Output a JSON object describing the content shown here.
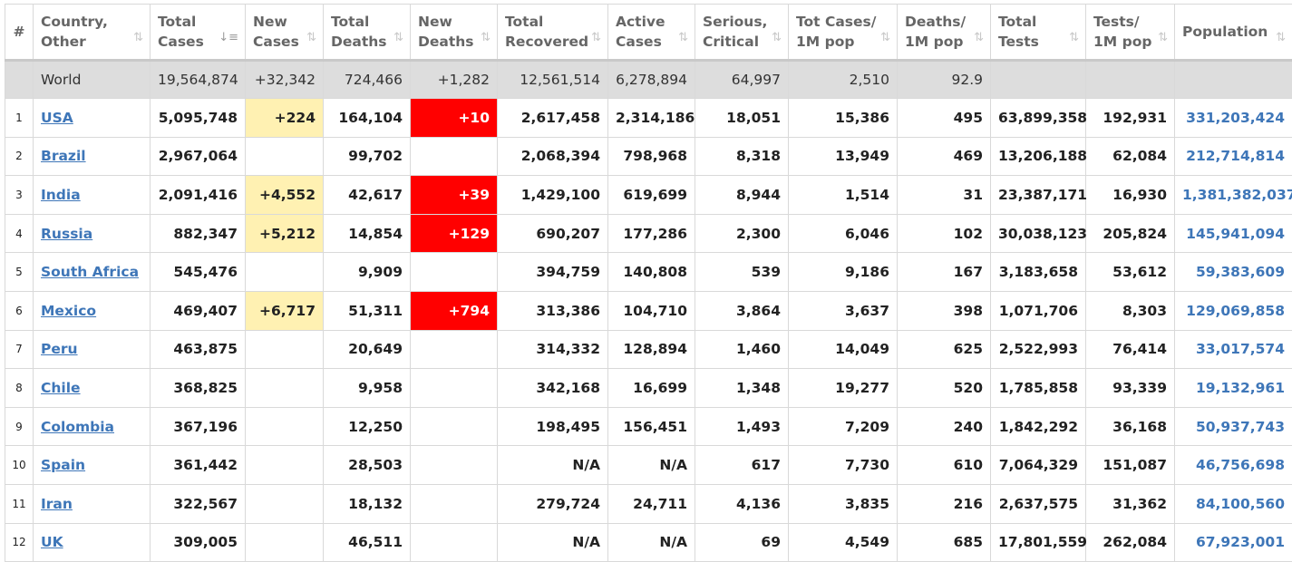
{
  "headers": {
    "idx": "#",
    "country": [
      "Country,",
      "Other"
    ],
    "total_cases": [
      "Total",
      "Cases"
    ],
    "new_cases": [
      "New",
      "Cases"
    ],
    "total_deaths": [
      "Total",
      "Deaths"
    ],
    "new_deaths": [
      "New",
      "Deaths"
    ],
    "total_recovered": [
      "Total",
      "Recovered"
    ],
    "active_cases": [
      "Active",
      "Cases"
    ],
    "serious": [
      "Serious,",
      "Critical"
    ],
    "cases_per_m": [
      "Tot Cases/",
      "1M pop"
    ],
    "deaths_per_m": [
      "Deaths/",
      "1M pop"
    ],
    "total_tests": [
      "Total",
      "Tests"
    ],
    "tests_per_m": [
      "Tests/",
      "1M pop"
    ],
    "population": "Population"
  },
  "world": {
    "name": "World",
    "total_cases": "19,564,874",
    "new_cases": "+32,342",
    "total_deaths": "724,466",
    "new_deaths": "+1,282",
    "total_recovered": "12,561,514",
    "active_cases": "6,278,894",
    "serious": "64,997",
    "cases_per_m": "2,510",
    "deaths_per_m": "92.9",
    "total_tests": "",
    "tests_per_m": "",
    "population": ""
  },
  "rows": [
    {
      "idx": "1",
      "country": "USA",
      "total_cases": "5,095,748",
      "new_cases": "+224",
      "total_deaths": "164,104",
      "new_deaths": "+10",
      "total_recovered": "2,617,458",
      "active_cases": "2,314,186",
      "serious": "18,051",
      "cases_per_m": "15,386",
      "deaths_per_m": "495",
      "total_tests": "63,899,358",
      "tests_per_m": "192,931",
      "population": "331,203,424"
    },
    {
      "idx": "2",
      "country": "Brazil",
      "total_cases": "2,967,064",
      "new_cases": "",
      "total_deaths": "99,702",
      "new_deaths": "",
      "total_recovered": "2,068,394",
      "active_cases": "798,968",
      "serious": "8,318",
      "cases_per_m": "13,949",
      "deaths_per_m": "469",
      "total_tests": "13,206,188",
      "tests_per_m": "62,084",
      "population": "212,714,814"
    },
    {
      "idx": "3",
      "country": "India",
      "total_cases": "2,091,416",
      "new_cases": "+4,552",
      "total_deaths": "42,617",
      "new_deaths": "+39",
      "total_recovered": "1,429,100",
      "active_cases": "619,699",
      "serious": "8,944",
      "cases_per_m": "1,514",
      "deaths_per_m": "31",
      "total_tests": "23,387,171",
      "tests_per_m": "16,930",
      "population": "1,381,382,037"
    },
    {
      "idx": "4",
      "country": "Russia",
      "total_cases": "882,347",
      "new_cases": "+5,212",
      "total_deaths": "14,854",
      "new_deaths": "+129",
      "total_recovered": "690,207",
      "active_cases": "177,286",
      "serious": "2,300",
      "cases_per_m": "6,046",
      "deaths_per_m": "102",
      "total_tests": "30,038,123",
      "tests_per_m": "205,824",
      "population": "145,941,094"
    },
    {
      "idx": "5",
      "country": "South Africa",
      "total_cases": "545,476",
      "new_cases": "",
      "total_deaths": "9,909",
      "new_deaths": "",
      "total_recovered": "394,759",
      "active_cases": "140,808",
      "serious": "539",
      "cases_per_m": "9,186",
      "deaths_per_m": "167",
      "total_tests": "3,183,658",
      "tests_per_m": "53,612",
      "population": "59,383,609"
    },
    {
      "idx": "6",
      "country": "Mexico",
      "total_cases": "469,407",
      "new_cases": "+6,717",
      "total_deaths": "51,311",
      "new_deaths": "+794",
      "total_recovered": "313,386",
      "active_cases": "104,710",
      "serious": "3,864",
      "cases_per_m": "3,637",
      "deaths_per_m": "398",
      "total_tests": "1,071,706",
      "tests_per_m": "8,303",
      "population": "129,069,858"
    },
    {
      "idx": "7",
      "country": "Peru",
      "total_cases": "463,875",
      "new_cases": "",
      "total_deaths": "20,649",
      "new_deaths": "",
      "total_recovered": "314,332",
      "active_cases": "128,894",
      "serious": "1,460",
      "cases_per_m": "14,049",
      "deaths_per_m": "625",
      "total_tests": "2,522,993",
      "tests_per_m": "76,414",
      "population": "33,017,574"
    },
    {
      "idx": "8",
      "country": "Chile",
      "total_cases": "368,825",
      "new_cases": "",
      "total_deaths": "9,958",
      "new_deaths": "",
      "total_recovered": "342,168",
      "active_cases": "16,699",
      "serious": "1,348",
      "cases_per_m": "19,277",
      "deaths_per_m": "520",
      "total_tests": "1,785,858",
      "tests_per_m": "93,339",
      "population": "19,132,961"
    },
    {
      "idx": "9",
      "country": "Colombia",
      "total_cases": "367,196",
      "new_cases": "",
      "total_deaths": "12,250",
      "new_deaths": "",
      "total_recovered": "198,495",
      "active_cases": "156,451",
      "serious": "1,493",
      "cases_per_m": "7,209",
      "deaths_per_m": "240",
      "total_tests": "1,842,292",
      "tests_per_m": "36,168",
      "population": "50,937,743"
    },
    {
      "idx": "10",
      "country": "Spain",
      "total_cases": "361,442",
      "new_cases": "",
      "total_deaths": "28,503",
      "new_deaths": "",
      "total_recovered": "N/A",
      "active_cases": "N/A",
      "serious": "617",
      "cases_per_m": "7,730",
      "deaths_per_m": "610",
      "total_tests": "7,064,329",
      "tests_per_m": "151,087",
      "population": "46,756,698"
    },
    {
      "idx": "11",
      "country": "Iran",
      "total_cases": "322,567",
      "new_cases": "",
      "total_deaths": "18,132",
      "new_deaths": "",
      "total_recovered": "279,724",
      "active_cases": "24,711",
      "serious": "4,136",
      "cases_per_m": "3,835",
      "deaths_per_m": "216",
      "total_tests": "2,637,575",
      "tests_per_m": "31,362",
      "population": "84,100,560"
    },
    {
      "idx": "12",
      "country": "UK",
      "total_cases": "309,005",
      "new_cases": "",
      "total_deaths": "46,511",
      "new_deaths": "",
      "total_recovered": "N/A",
      "active_cases": "N/A",
      "serious": "69",
      "cases_per_m": "4,549",
      "deaths_per_m": "685",
      "total_tests": "17,801,559",
      "tests_per_m": "262,084",
      "population": "67,923,001"
    }
  ],
  "colors": {
    "new_cases_highlight": "#fff1b2",
    "new_deaths_highlight": "#ff0000",
    "link": "#3e76b8",
    "world_row": "#dddddd"
  },
  "icons": {
    "sort": "sort-arrows-icon",
    "sort_active": "sort-descending-icon"
  }
}
